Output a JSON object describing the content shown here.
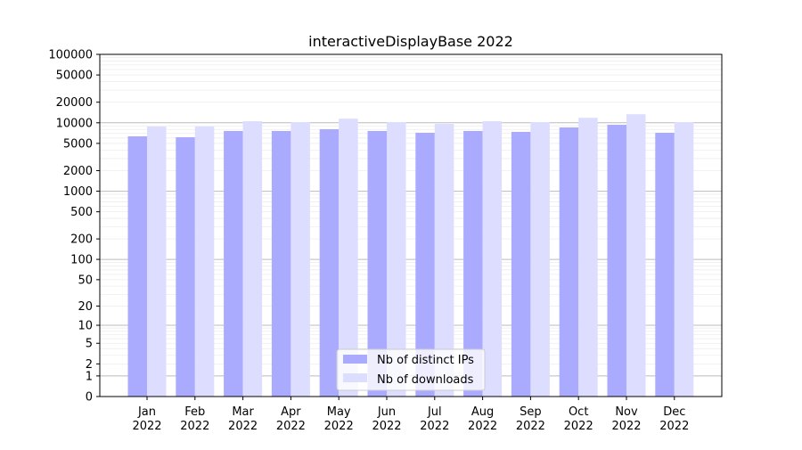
{
  "chart_data": {
    "type": "bar",
    "title": "interactiveDisplayBase 2022",
    "xlabel": "",
    "ylabel": "",
    "yscale": "log(1+y)",
    "ylim": [
      0,
      100000
    ],
    "yticks": [
      0,
      1,
      2,
      5,
      10,
      20,
      50,
      100,
      200,
      500,
      1000,
      2000,
      5000,
      10000,
      20000,
      50000,
      100000
    ],
    "categories": [
      "Jan\n2022",
      "Feb\n2022",
      "Mar\n2022",
      "Apr\n2022",
      "May\n2022",
      "Jun\n2022",
      "Jul\n2022",
      "Aug\n2022",
      "Sep\n2022",
      "Oct\n2022",
      "Nov\n2022",
      "Dec\n2022"
    ],
    "grid": true,
    "legend": "lower center",
    "series": [
      {
        "name": "Nb of distinct IPs",
        "color": "#aaaaff",
        "values": [
          6340,
          6150,
          7590,
          7590,
          8060,
          7590,
          7150,
          7590,
          7360,
          8550,
          9350,
          7150
        ]
      },
      {
        "name": "Nb of downloads",
        "color": "#ddddff",
        "values": [
          8810,
          8810,
          10540,
          10230,
          11470,
          10230,
          9640,
          10540,
          10230,
          11830,
          13330,
          10230
        ]
      }
    ]
  }
}
